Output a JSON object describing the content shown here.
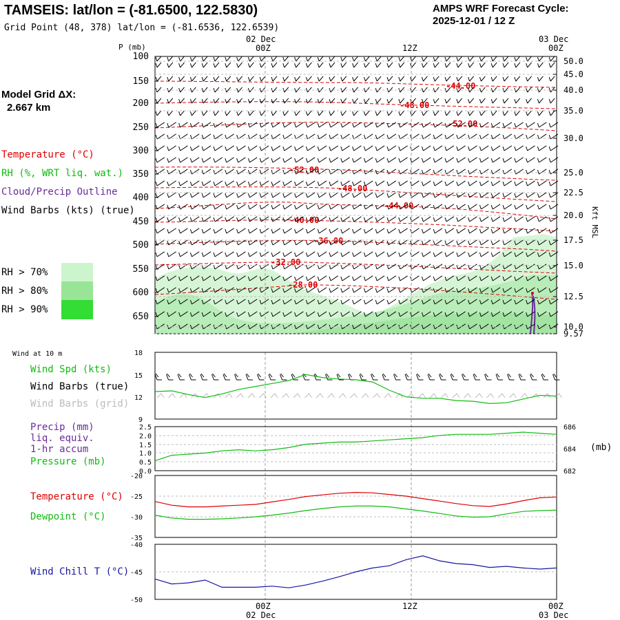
{
  "header": {
    "station": "TAMSEIS:",
    "latlon": "lat/lon = (-81.6500, 122.5830)",
    "grid_point": "Grid Point (48, 378) lat/lon = (-81.6536, 122.6539)",
    "cycle_line1": "AMPS WRF Forecast Cycle:",
    "cycle_line2": "2025-12-01 / 12  Z"
  },
  "model": {
    "line1": "Model Grid ΔX:",
    "line2": "2.667 km"
  },
  "legend_upper": {
    "temperature": "Temperature (°C)",
    "rh": "RH (%, WRT liq. wat.)",
    "cloud": "Cloud/Precip Outline",
    "barbs": "Wind Barbs (kts) (true)",
    "rh70": "RH > 70%",
    "rh80": "RH > 80%",
    "rh90": "RH > 90%"
  },
  "legend_wind": {
    "title": "Wind at 10 m",
    "spd": "Wind Spd (kts)",
    "true": "Wind Barbs (true)",
    "grid": "Wind Barbs (grid)"
  },
  "legend_precip": {
    "l1": "Precip (mm)",
    "l2": "liq. equiv.",
    "l3": "1-hr accum",
    "pres": "Pressure (mb)"
  },
  "legend_temp": {
    "t": "Temperature (°C)",
    "d": "Dewpoint (°C)"
  },
  "legend_chill": {
    "w": "Wind Chill T (°C)"
  },
  "colors": {
    "temp": "#dd0000",
    "green": "#10bb10",
    "cloud": "#6a2a9a",
    "chill": "#1515a0",
    "rh70": "#cdf5cd",
    "rh80": "#98e598",
    "rh90": "#33dd33"
  },
  "axes": {
    "top_day": "02 Dec",
    "top_00z": "00Z",
    "top_12z": "12Z",
    "top_day2": "03 Dec",
    "top_00z2": "00Z",
    "p_label": "P (mb)",
    "right_label": "Kft MSL",
    "p_ticks": [
      "100",
      "150",
      "200",
      "250",
      "300",
      "350",
      "400",
      "450",
      "500",
      "550",
      "600",
      "650"
    ],
    "kft_ticks": [
      "50.0",
      "45.0",
      "40.0",
      "35.0",
      "30.0",
      "25.0",
      "22.5",
      "20.0",
      "17.5",
      "15.0",
      "12.5",
      "10.0",
      "9.57"
    ],
    "precip_y": [
      "2.5",
      "2.0",
      "1.5",
      "1.0",
      "0.5",
      "0.0"
    ],
    "pres_ticks": [
      "686",
      "684",
      "682"
    ],
    "pres_unit": "(mb)",
    "wind_y": [
      "18",
      "15",
      "12",
      "9"
    ],
    "temp_y": [
      "-20",
      "-25",
      "-30",
      "-35"
    ],
    "chill_y": [
      "-40",
      "-45",
      "-50"
    ]
  },
  "chart_data": [
    {
      "type": "line",
      "name": "cross-section",
      "contour_labels": [
        "-44.00",
        "-48.00",
        "-52.00",
        "-52.00",
        "-48.00",
        "-44.00",
        "-40.00",
        "-36.00",
        "-32.00",
        "-28.00"
      ],
      "notes": "Temperature contours (°C) over pressure levels with RH shading and wind barbs"
    },
    {
      "type": "line",
      "name": "wind_spd",
      "x": [
        0,
        1,
        2,
        3,
        4,
        5,
        6,
        7,
        8,
        9,
        10,
        11,
        12,
        13,
        14,
        15,
        16,
        17,
        18,
        19,
        20,
        21,
        22,
        23,
        24
      ],
      "values": [
        12.7,
        12.8,
        12.3,
        11.9,
        12.4,
        13.0,
        13.4,
        13.8,
        14.2,
        15.0,
        14.6,
        14.4,
        14.3,
        14.0,
        12.9,
        12.0,
        11.8,
        11.8,
        11.5,
        11.4,
        11.1,
        11.2,
        11.7,
        12.2,
        12.1
      ],
      "ylim": [
        9,
        18
      ]
    },
    {
      "type": "line",
      "name": "pressure",
      "x": [
        0,
        1,
        2,
        3,
        4,
        5,
        6,
        7,
        8,
        9,
        10,
        11,
        12,
        13,
        14,
        15,
        16,
        17,
        18,
        19,
        20,
        21,
        22,
        23,
        24
      ],
      "values": [
        682.9,
        683.4,
        683.5,
        683.6,
        683.8,
        683.9,
        683.8,
        683.9,
        684.1,
        684.4,
        684.5,
        684.6,
        684.6,
        684.7,
        684.8,
        684.9,
        685.0,
        685.2,
        685.3,
        685.3,
        685.3,
        685.4,
        685.5,
        685.4,
        685.3
      ],
      "ylim": [
        682,
        686
      ]
    },
    {
      "type": "line",
      "name": "temperature",
      "x": [
        0,
        1,
        2,
        3,
        4,
        5,
        6,
        7,
        8,
        9,
        10,
        11,
        12,
        13,
        14,
        15,
        16,
        17,
        18,
        19,
        20,
        21,
        22,
        23,
        24
      ],
      "series": [
        {
          "name": "Temperature (°C)",
          "values": [
            -26.3,
            -27.2,
            -27.6,
            -27.6,
            -27.4,
            -27.2,
            -27.0,
            -26.4,
            -25.8,
            -25.1,
            -24.7,
            -24.3,
            -24.1,
            -24.2,
            -24.6,
            -25.0,
            -25.6,
            -26.2,
            -26.8,
            -27.3,
            -27.5,
            -26.9,
            -26.1,
            -25.4,
            -25.2
          ]
        },
        {
          "name": "Dewpoint (°C)",
          "values": [
            -29.6,
            -30.3,
            -30.6,
            -30.6,
            -30.5,
            -30.3,
            -30.0,
            -29.6,
            -29.1,
            -28.5,
            -28.0,
            -27.6,
            -27.4,
            -27.4,
            -27.6,
            -28.1,
            -28.6,
            -29.2,
            -29.8,
            -30.1,
            -30.0,
            -29.3,
            -28.7,
            -28.5,
            -28.4
          ]
        }
      ],
      "ylim": [
        -35,
        -20
      ]
    },
    {
      "type": "line",
      "name": "wind_chill",
      "x": [
        0,
        1,
        2,
        3,
        4,
        5,
        6,
        7,
        8,
        9,
        10,
        11,
        12,
        13,
        14,
        15,
        16,
        17,
        18,
        19,
        20,
        21,
        22,
        23,
        24
      ],
      "values": [
        -46.3,
        -47.2,
        -47.0,
        -46.5,
        -47.8,
        -47.8,
        -47.8,
        -47.6,
        -47.9,
        -47.4,
        -46.7,
        -45.9,
        -45.0,
        -44.3,
        -43.9,
        -42.8,
        -42.1,
        -43.0,
        -43.5,
        -43.7,
        -44.2,
        -44.0,
        -44.3,
        -44.5,
        -44.3
      ],
      "ylim": [
        -50,
        -40
      ]
    }
  ]
}
